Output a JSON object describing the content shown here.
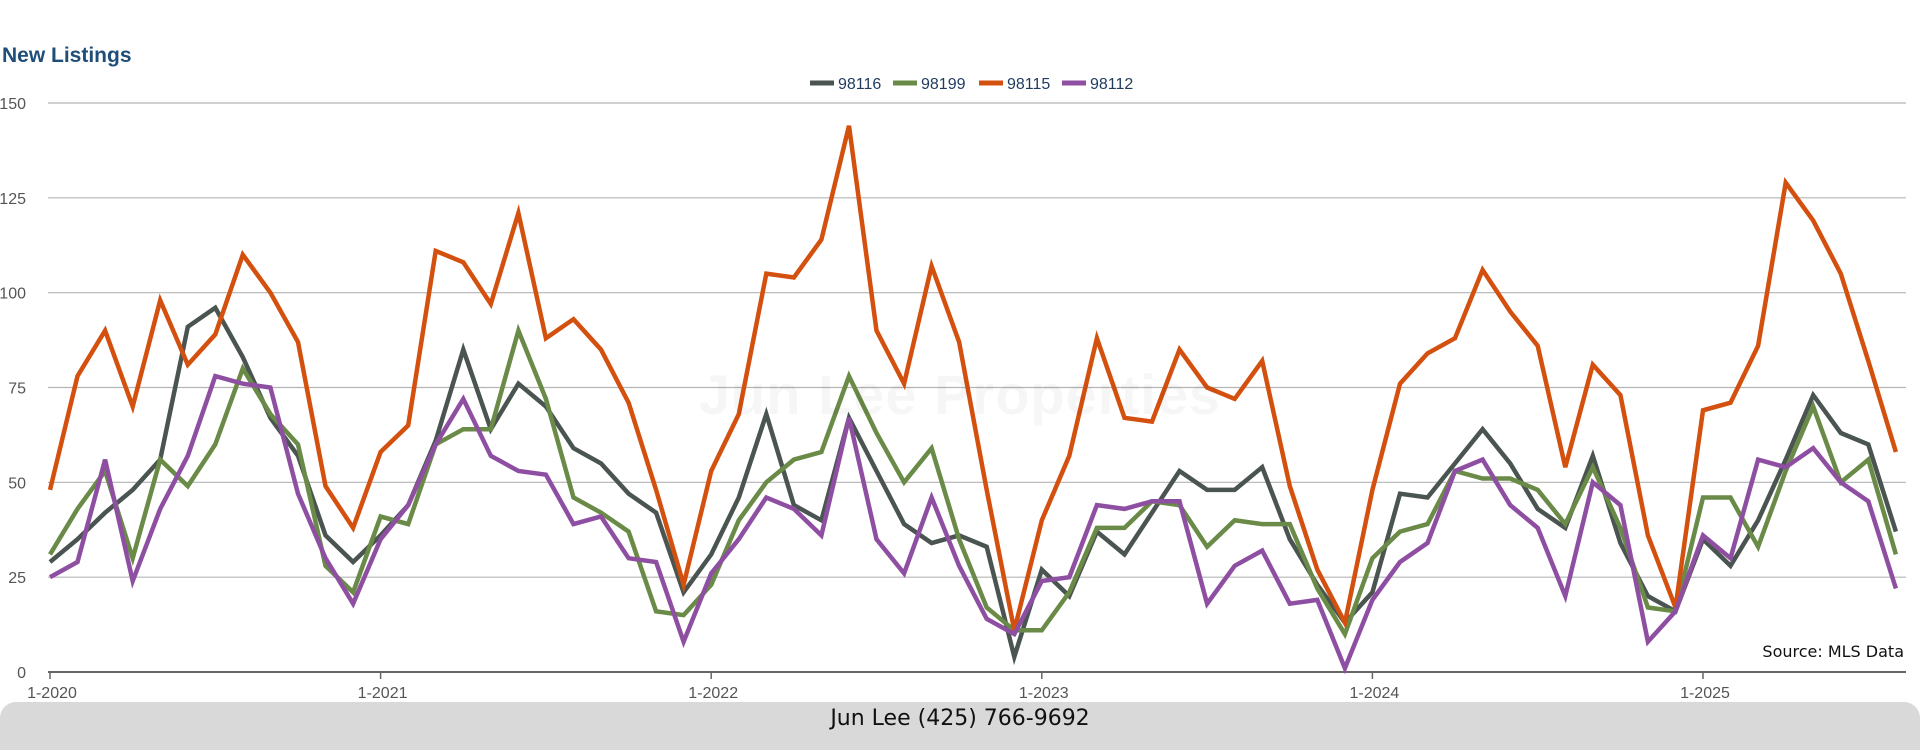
{
  "chart_data": {
    "type": "line",
    "title": "New Listings",
    "xlabel": "",
    "ylabel": "",
    "ylim": [
      0,
      150
    ],
    "y_ticks": [
      "0",
      "25",
      "50",
      "75",
      "100",
      "125",
      "150"
    ],
    "x_ticks": [
      "1-2020",
      "1-2021",
      "1-2022",
      "1-2023",
      "1-2024",
      "1-2025"
    ],
    "x_start": "1-2020",
    "grid": true,
    "legend_position": "top-center",
    "series": [
      {
        "name": "98116",
        "color": "#4a5450",
        "values": [
          29,
          35,
          42,
          48,
          56,
          91,
          96,
          83,
          67,
          57,
          36,
          29,
          36,
          44,
          61,
          85,
          64,
          76,
          70,
          59,
          55,
          47,
          42,
          21,
          31,
          46,
          68,
          44,
          40,
          67,
          53,
          39,
          34,
          36,
          33,
          4,
          27,
          20,
          37,
          31,
          42,
          53,
          48,
          48,
          54,
          35,
          23,
          13,
          21,
          47,
          46,
          55,
          64,
          55,
          43,
          38,
          57,
          34,
          20,
          16,
          35,
          28,
          40,
          56,
          73,
          63,
          60,
          37
        ]
      },
      {
        "name": "98199",
        "color": "#6a8a47",
        "values": [
          31,
          43,
          53,
          30,
          56,
          49,
          60,
          80,
          68,
          60,
          28,
          21,
          41,
          39,
          60,
          64,
          64,
          90,
          72,
          46,
          42,
          37,
          16,
          15,
          23,
          40,
          50,
          56,
          58,
          78,
          63,
          50,
          59,
          35,
          17,
          11,
          11,
          21,
          38,
          38,
          45,
          44,
          33,
          40,
          39,
          39,
          22,
          10,
          30,
          37,
          39,
          53,
          51,
          51,
          48,
          39,
          54,
          38,
          17,
          16,
          46,
          46,
          33,
          53,
          70,
          50,
          56,
          31
        ]
      },
      {
        "name": "98115",
        "color": "#d4500f",
        "values": [
          48,
          78,
          90,
          70,
          98,
          81,
          89,
          110,
          100,
          87,
          49,
          38,
          58,
          65,
          111,
          108,
          97,
          121,
          88,
          93,
          85,
          71,
          48,
          23,
          53,
          68,
          105,
          104,
          114,
          144,
          90,
          76,
          107,
          87,
          48,
          11,
          40,
          57,
          88,
          67,
          66,
          85,
          75,
          72,
          82,
          49,
          27,
          13,
          48,
          76,
          84,
          88,
          106,
          95,
          86,
          54,
          81,
          73,
          36,
          17,
          69,
          71,
          86,
          129,
          119,
          105,
          82,
          58
        ]
      },
      {
        "name": "98112",
        "color": "#8e4fa2",
        "values": [
          25,
          29,
          56,
          24,
          43,
          57,
          78,
          76,
          75,
          47,
          30,
          18,
          35,
          44,
          60,
          72,
          57,
          53,
          52,
          39,
          41,
          30,
          29,
          8,
          26,
          35,
          46,
          43,
          36,
          67,
          35,
          26,
          46,
          28,
          14,
          10,
          24,
          25,
          44,
          43,
          45,
          45,
          18,
          28,
          32,
          18,
          19,
          1,
          19,
          29,
          34,
          53,
          56,
          44,
          38,
          20,
          50,
          44,
          8,
          16,
          36,
          30,
          56,
          54,
          59,
          50,
          45,
          22
        ]
      }
    ]
  },
  "watermark": "Jun Lee Properties",
  "source_note": "Source: MLS Data",
  "footer": "Jun Lee (425) 766-9692"
}
